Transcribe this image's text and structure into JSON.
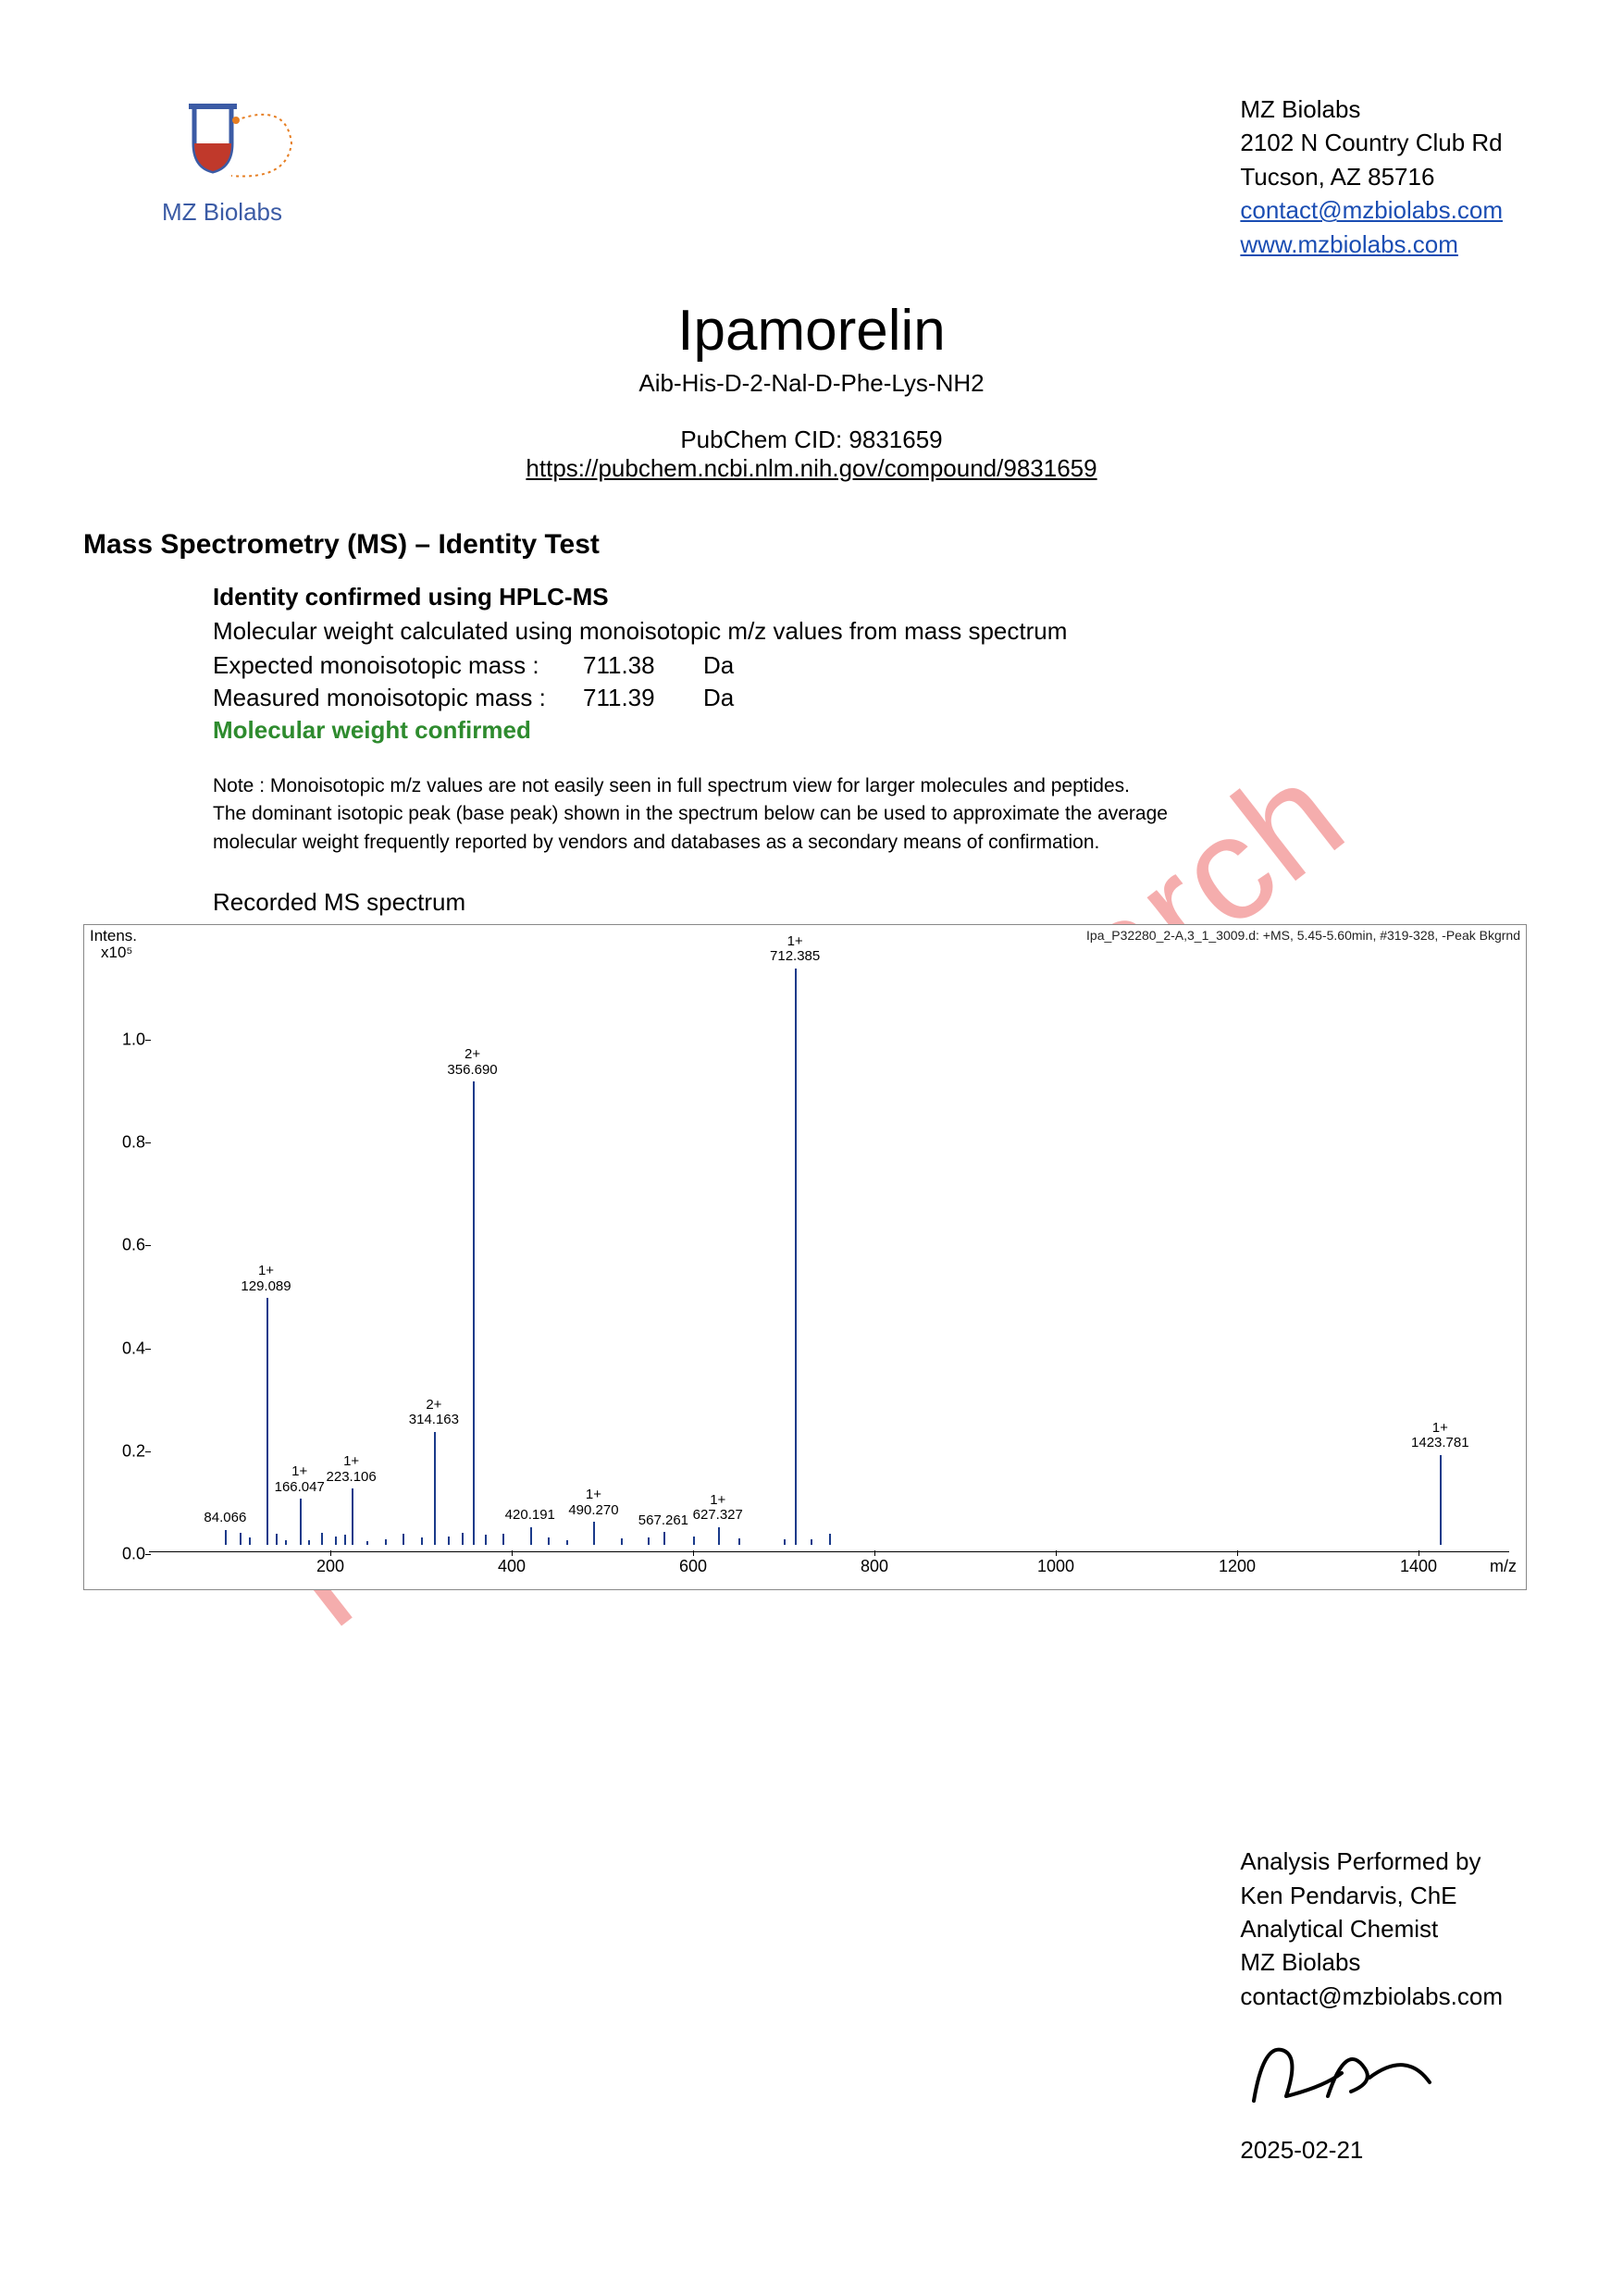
{
  "company": {
    "name": "MZ Biolabs",
    "address1": "2102 N Country Club Rd",
    "address2": "Tucson, AZ 85716",
    "email": "contact@mzbiolabs.com",
    "website": "www.mzbiolabs.com",
    "logo_text": "MZ Biolabs"
  },
  "compound": {
    "name": "Ipamorelin",
    "sequence": "Aib-His-D-2-Nal-D-Phe-Lys-NH2",
    "pubchem_label": "PubChem CID: 9831659",
    "pubchem_url": "https://pubchem.ncbi.nlm.nih.gov/compound/9831659"
  },
  "section": {
    "heading": "Mass Spectrometry (MS) – Identity Test",
    "confirm_heading": "Identity confirmed using HPLC-MS",
    "calc_line": "Molecular weight calculated using monoisotopic m/z values from mass spectrum",
    "expected_label": "Expected monoisotopic mass :",
    "expected_value": "711.38",
    "measured_label": "Measured monoisotopic mass :",
    "measured_value": "711.39",
    "unit": "Da",
    "confirmed_text": "Molecular weight confirmed",
    "note1": "Note : Monoisotopic m/z values are not easily seen in full spectrum view for larger molecules and peptides.",
    "note2": "The dominant isotopic peak (base peak) shown in the spectrum below can be used to approximate the average",
    "note3": "molecular weight frequently reported by vendors and databases as a secondary means of confirmation.",
    "spectrum_title": "Recorded MS spectrum"
  },
  "chart": {
    "type": "mass-spectrum",
    "meta_text": "Ipa_P32280_2-A,3_1_3009.d: +MS, 5.45-5.60min, #319-328, -Peak Bkgrnd",
    "y_title": "Intens.",
    "y_exponent": "x10⁵",
    "x_title": "m/z",
    "xlim": [
      0,
      1500
    ],
    "ylim": [
      0,
      1.15
    ],
    "x_ticks": [
      200,
      400,
      600,
      800,
      1000,
      1200,
      1400
    ],
    "y_ticks": [
      0.0,
      0.2,
      0.4,
      0.6,
      0.8,
      1.0
    ],
    "line_color": "#1a3a8a",
    "background_color": "#ffffff",
    "peaks": [
      {
        "mz": 84.066,
        "intensity": 0.03,
        "charge": "",
        "label": "84.066"
      },
      {
        "mz": 129.089,
        "intensity": 0.48,
        "charge": "1+",
        "label": "129.089"
      },
      {
        "mz": 166.047,
        "intensity": 0.09,
        "charge": "1+",
        "label": "166.047"
      },
      {
        "mz": 223.106,
        "intensity": 0.11,
        "charge": "1+",
        "label": "223.106"
      },
      {
        "mz": 314.163,
        "intensity": 0.22,
        "charge": "2+",
        "label": "314.163"
      },
      {
        "mz": 356.69,
        "intensity": 0.9,
        "charge": "2+",
        "label": "356.690"
      },
      {
        "mz": 420.191,
        "intensity": 0.035,
        "charge": "",
        "label": "420.191"
      },
      {
        "mz": 490.27,
        "intensity": 0.045,
        "charge": "1+",
        "label": "490.270"
      },
      {
        "mz": 567.261,
        "intensity": 0.025,
        "charge": "",
        "label": "567.261"
      },
      {
        "mz": 627.327,
        "intensity": 0.035,
        "charge": "1+",
        "label": "627.327"
      },
      {
        "mz": 712.385,
        "intensity": 1.12,
        "charge": "1+",
        "label": "712.385"
      },
      {
        "mz": 1423.781,
        "intensity": 0.175,
        "charge": "1+",
        "label": "1423.781"
      }
    ],
    "minor_peaks_mz": [
      100,
      110,
      140,
      150,
      175,
      190,
      205,
      215,
      240,
      260,
      280,
      300,
      330,
      345,
      370,
      390,
      440,
      460,
      520,
      550,
      600,
      650,
      700,
      730,
      750
    ]
  },
  "watermark": "Freedom Research",
  "footer": {
    "line1": "Analysis Performed by",
    "line2": "Ken Pendarvis, ChE",
    "line3": "Analytical Chemist",
    "line4": "MZ Biolabs",
    "line5": "contact@mzbiolabs.com",
    "date": "2025-02-21"
  }
}
